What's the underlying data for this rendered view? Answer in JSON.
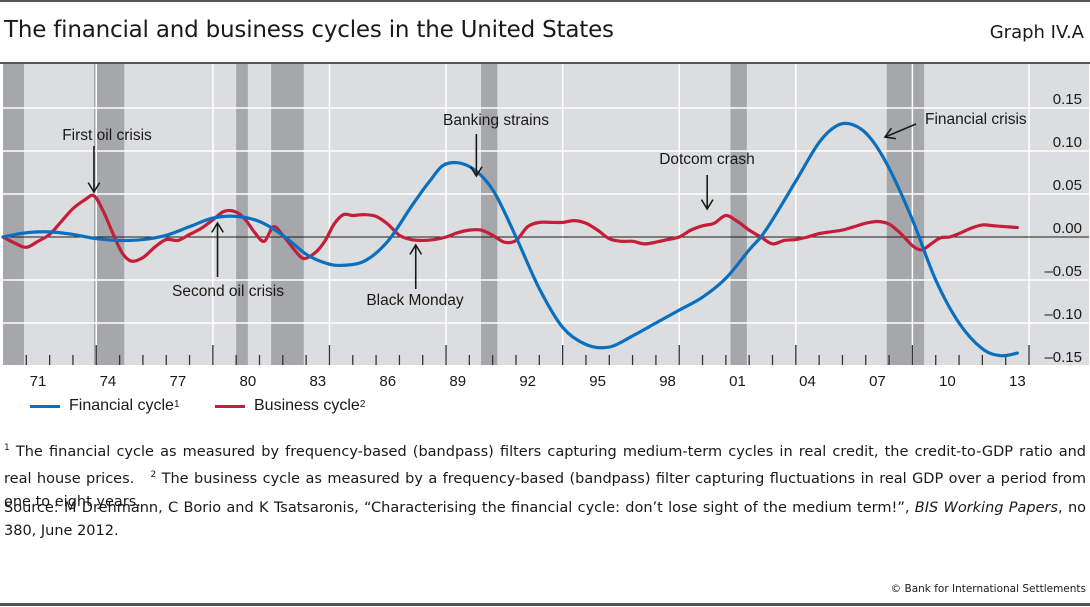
{
  "header": {
    "title": "The financial and business cycles in the United States",
    "graph_id": "Graph IV.A"
  },
  "legend": [
    {
      "label": "Financial cycle",
      "sup": "1",
      "color": "#0a6fbe"
    },
    {
      "label": "Business cycle",
      "sup": "2",
      "color": "#c41e3a"
    }
  ],
  "footnotes": {
    "note1_mark": "1",
    "note1": " The financial cycle as measured by frequency-based (bandpass) filters capturing medium-term cycles in real credit, the credit-to-GDP ratio and real house prices.",
    "note2_mark": "2",
    "note2": " The business cycle as measured by a frequency-based (bandpass) filter capturing fluctuations in real GDP over a period from one to eight years."
  },
  "source": {
    "prefix": "Source: M Drehmann, C Borio and K Tsatsaronis, “Characterising the financial cycle: don’t lose sight of the medium term!”, ",
    "journal": "BIS Working Papers",
    "suffix": ", no 380, June 2012."
  },
  "copyright": "© Bank for International Settlements",
  "colors": {
    "plot_bg": "#dcdddf",
    "recession": "#a6a7aa",
    "grid": "#ffffff",
    "financial": "#0a6fbe",
    "business": "#c41e3a"
  },
  "chart_data": {
    "type": "line",
    "title": "The financial and business cycles in the United States",
    "xlabel": "",
    "ylabel": "",
    "xlim": [
      1970,
      2014
    ],
    "ylim": [
      -0.15,
      0.2
    ],
    "grid": true,
    "legend_position": "bottom-left",
    "x_tick_labels": [
      "71",
      "74",
      "77",
      "80",
      "83",
      "86",
      "89",
      "92",
      "95",
      "98",
      "01",
      "04",
      "07",
      "10",
      "13"
    ],
    "x_tick_label_years": [
      1971,
      1974,
      1977,
      1980,
      1983,
      1986,
      1989,
      1992,
      1995,
      1998,
      2001,
      2004,
      2007,
      2010,
      2013
    ],
    "y_ticks": [
      0.15,
      0.1,
      0.05,
      0.0,
      -0.05,
      -0.1,
      -0.15
    ],
    "y_tick_labels": [
      "0.15",
      "0.10",
      "0.05",
      "0.00",
      "–0.05",
      "–0.10",
      "–0.15"
    ],
    "recessions": [
      [
        1970.0,
        1970.9
      ],
      [
        1973.9,
        1975.2
      ],
      [
        1980.0,
        1980.5
      ],
      [
        1981.5,
        1982.9
      ],
      [
        1990.5,
        1991.2
      ],
      [
        2001.2,
        2001.9
      ],
      [
        2007.9,
        2009.5
      ]
    ],
    "series": [
      {
        "name": "Financial cycle",
        "x": [
          1970.0,
          1971.0,
          1972.0,
          1973.0,
          1974.0,
          1975.0,
          1976.0,
          1977.0,
          1978.0,
          1979.0,
          1980.0,
          1981.0,
          1982.0,
          1983.0,
          1983.8,
          1984.5,
          1985.5,
          1986.5,
          1987.5,
          1988.3,
          1989.0,
          1990.0,
          1991.0,
          1992.0,
          1993.0,
          1994.0,
          1995.0,
          1996.0,
          1997.0,
          1998.0,
          1999.0,
          2000.0,
          2001.0,
          2002.0,
          2002.5,
          2003.0,
          2004.0,
          2005.0,
          2005.8,
          2006.5,
          2007.2,
          2008.0,
          2009.0,
          2010.0,
          2011.0,
          2012.0,
          2012.8,
          2013.5
        ],
        "values": [
          0.0,
          0.005,
          0.006,
          0.003,
          -0.002,
          -0.004,
          -0.003,
          0.002,
          0.012,
          0.022,
          0.024,
          0.018,
          0.002,
          -0.02,
          -0.03,
          -0.033,
          -0.028,
          -0.005,
          0.035,
          0.065,
          0.085,
          0.082,
          0.055,
          0.0,
          -0.06,
          -0.105,
          -0.125,
          -0.128,
          -0.115,
          -0.1,
          -0.085,
          -0.07,
          -0.048,
          -0.015,
          0.0,
          0.02,
          0.065,
          0.11,
          0.13,
          0.13,
          0.115,
          0.08,
          0.02,
          -0.05,
          -0.1,
          -0.13,
          -0.138,
          -0.135
        ]
      },
      {
        "name": "Business cycle",
        "x": [
          1970.0,
          1970.5,
          1971.0,
          1971.5,
          1972.0,
          1972.5,
          1973.0,
          1973.5,
          1973.9,
          1974.3,
          1974.7,
          1975.1,
          1975.5,
          1976.0,
          1976.5,
          1977.0,
          1977.5,
          1978.0,
          1978.5,
          1979.0,
          1979.5,
          1980.0,
          1980.4,
          1980.8,
          1981.2,
          1981.6,
          1982.0,
          1982.5,
          1982.9,
          1983.4,
          1983.8,
          1984.2,
          1984.6,
          1985.0,
          1985.5,
          1986.0,
          1986.5,
          1987.0,
          1987.5,
          1988.0,
          1988.5,
          1989.0,
          1989.5,
          1990.0,
          1990.5,
          1991.0,
          1991.5,
          1992.0,
          1992.5,
          1993.0,
          1993.5,
          1994.0,
          1994.5,
          1995.0,
          1995.5,
          1996.0,
          1996.5,
          1997.0,
          1997.5,
          1998.0,
          1998.5,
          1999.0,
          1999.5,
          2000.0,
          2000.5,
          2001.0,
          2001.5,
          2002.0,
          2002.5,
          2003.0,
          2003.5,
          2004.0,
          2004.5,
          2005.0,
          2005.5,
          2006.0,
          2006.5,
          2007.0,
          2007.5,
          2008.0,
          2008.5,
          2009.0,
          2009.4,
          2009.8,
          2010.2,
          2010.6,
          2011.0,
          2011.5,
          2012.0,
          2012.5,
          2013.0,
          2013.5
        ],
        "values": [
          0.0,
          -0.007,
          -0.012,
          -0.005,
          0.003,
          0.018,
          0.033,
          0.043,
          0.048,
          0.03,
          0.005,
          -0.018,
          -0.028,
          -0.024,
          -0.012,
          -0.003,
          -0.004,
          0.003,
          0.01,
          0.02,
          0.03,
          0.029,
          0.02,
          0.005,
          -0.005,
          0.012,
          0.002,
          -0.015,
          -0.025,
          -0.018,
          -0.005,
          0.015,
          0.026,
          0.025,
          0.026,
          0.024,
          0.015,
          0.002,
          -0.003,
          -0.004,
          -0.003,
          0.0,
          0.005,
          0.008,
          0.008,
          0.002,
          -0.006,
          -0.004,
          0.012,
          0.017,
          0.017,
          0.017,
          0.019,
          0.016,
          0.008,
          -0.002,
          -0.005,
          -0.005,
          -0.008,
          -0.006,
          -0.003,
          0.0,
          0.008,
          0.013,
          0.016,
          0.025,
          0.018,
          0.008,
          0.0,
          -0.008,
          -0.004,
          -0.003,
          0.0,
          0.004,
          0.006,
          0.008,
          0.012,
          0.016,
          0.018,
          0.015,
          0.004,
          -0.01,
          -0.015,
          -0.008,
          -0.001,
          0.0,
          0.004,
          0.01,
          0.014,
          0.013,
          0.012,
          0.011
        ]
      }
    ],
    "annotations": [
      {
        "text": "First oil crisis",
        "year": 1973.9,
        "direction": "down"
      },
      {
        "text": "Second oil crisis",
        "year": 1979.2,
        "direction": "up"
      },
      {
        "text": "Banking strains",
        "year": 1990.3,
        "direction": "down"
      },
      {
        "text": "Black Monday",
        "year": 1987.7,
        "direction": "up"
      },
      {
        "text": "Dotcom crash",
        "year": 2000.2,
        "direction": "down"
      },
      {
        "text": "Financial crisis",
        "year": 2007.9,
        "direction": "left"
      }
    ]
  }
}
